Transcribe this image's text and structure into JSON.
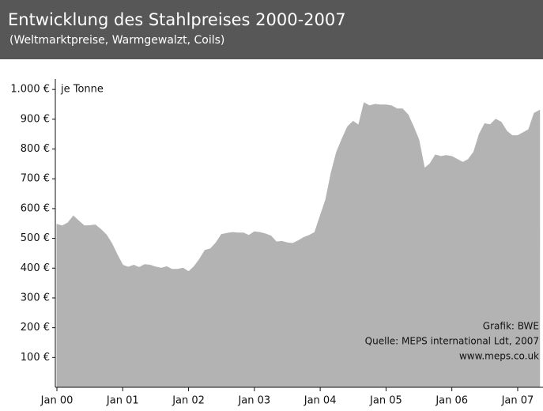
{
  "chart_data": {
    "type": "area",
    "title": "Entwicklung des Stahlpreises 2000-2007",
    "subtitle": "(Weltmarktpreise, Warmgewalzt,  Coils)",
    "y_label": "je Tonne",
    "annotations": [
      "Grafik: BWE",
      "Quelle: MEPS international Ldt, 2007",
      "www.meps.co.uk"
    ],
    "categories": [
      "Jan 00",
      null,
      null,
      null,
      null,
      null,
      null,
      null,
      null,
      null,
      null,
      null,
      "Jan 01",
      null,
      null,
      null,
      null,
      null,
      null,
      null,
      null,
      null,
      null,
      null,
      "Jan 02",
      null,
      null,
      null,
      null,
      null,
      null,
      null,
      null,
      null,
      null,
      null,
      "Jan 03",
      null,
      null,
      null,
      null,
      null,
      null,
      null,
      null,
      null,
      null,
      null,
      "Jan 04",
      null,
      null,
      null,
      null,
      null,
      null,
      null,
      null,
      null,
      null,
      null,
      "Jan 05",
      null,
      null,
      null,
      null,
      null,
      null,
      null,
      null,
      null,
      null,
      null,
      "Jan 06",
      null,
      null,
      null,
      null,
      null,
      null,
      null,
      null,
      null,
      null,
      null,
      "Jan 07",
      null,
      null,
      null,
      null
    ],
    "values": [
      547,
      542,
      552,
      575,
      558,
      542,
      543,
      545,
      530,
      512,
      483,
      445,
      410,
      403,
      410,
      402,
      412,
      410,
      404,
      400,
      405,
      396,
      396,
      400,
      388,
      405,
      430,
      460,
      465,
      485,
      513,
      517,
      520,
      518,
      518,
      510,
      522,
      520,
      515,
      508,
      488,
      490,
      485,
      483,
      492,
      503,
      510,
      520,
      575,
      630,
      720,
      790,
      835,
      875,
      893,
      880,
      955,
      945,
      950,
      948,
      948,
      945,
      935,
      935,
      915,
      875,
      830,
      735,
      750,
      780,
      775,
      778,
      775,
      765,
      755,
      765,
      790,
      850,
      885,
      882,
      900,
      890,
      860,
      845,
      845,
      855,
      865,
      920,
      930
    ],
    "color": "#b3b3b3",
    "ylim": [
      0,
      1035
    ],
    "yticks": [
      {
        "value": 100,
        "label": "100 €"
      },
      {
        "value": 200,
        "label": "200 €"
      },
      {
        "value": 300,
        "label": "300 €"
      },
      {
        "value": 400,
        "label": "400 €"
      },
      {
        "value": 500,
        "label": "500 €"
      },
      {
        "value": 600,
        "label": "600 €"
      },
      {
        "value": 700,
        "label": "700 €"
      },
      {
        "value": 800,
        "label": "800 €"
      },
      {
        "value": 900,
        "label": "900 €"
      },
      {
        "value": 1000,
        "label": "1.000 €"
      }
    ],
    "grid": false
  }
}
